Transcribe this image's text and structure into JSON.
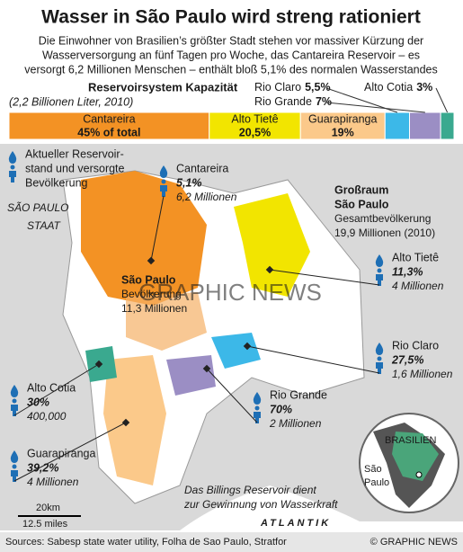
{
  "title": "Wasser in São Paulo wird streng rationiert",
  "subtitle": [
    "Die Einwohner von Brasilien’s größter Stadt stehen vor massiver Kürzung der",
    "Wasserversorgung an fünf Tagen pro Woche,  das Cantareira Reservoir – es",
    "versorgt 6,2 Millionen Menschen – enthält bloß 5,1% des normalen Wasserstandes"
  ],
  "capacity": {
    "title": "Reservoirsystem Kapazität",
    "subtitle": "(2,2 Billionen Liter, 2010)",
    "segments": [
      {
        "name": "Cantareira",
        "value": 45,
        "value_label": "45% of total",
        "color": "#f39224"
      },
      {
        "name": "Alto Tietê",
        "value": 20.5,
        "value_label": "20,5%",
        "color": "#f2e500"
      },
      {
        "name": "Guarapiranga",
        "value": 19,
        "value_label": "19%",
        "color": "#fbc98a"
      },
      {
        "name": "Rio Claro",
        "value": 5.5,
        "value_label": "5,5%",
        "color": "#3cb8e8"
      },
      {
        "name": "Rio Grande",
        "value": 7,
        "value_label": "7%",
        "color": "#9b8ec4"
      },
      {
        "name": "Alto Cotia",
        "value": 3,
        "value_label": "3%",
        "color": "#3aa98f"
      }
    ]
  },
  "legend": [
    "Aktueller Reservoir-",
    "stand und versorgte",
    "Bevölkerung"
  ],
  "state_label": [
    "SÃO PAULO",
    "STAAT"
  ],
  "metro": {
    "name": [
      "Großraum",
      "São Paulo"
    ],
    "label": "Gesamtbevölkerung",
    "population": "19,9 Millionen (2010)"
  },
  "city": {
    "name": "São Paulo",
    "label": "Bevölkerung",
    "population": "11,3 Millionen"
  },
  "reservoirs": [
    {
      "name": "Cantareira",
      "level": "5,1%",
      "population": "6,2 Millionen"
    },
    {
      "name": "Alto Tietê",
      "level": "11,3%",
      "population": "4 Millionen"
    },
    {
      "name": "Rio Claro",
      "level": "27,5%",
      "population": "1,6 Millionen"
    },
    {
      "name": "Rio Grande",
      "level": "70%",
      "population": "2 Millionen"
    },
    {
      "name": "Alto Cotia",
      "level": "30%",
      "population": "400,000"
    },
    {
      "name": "Guarapiranga",
      "level": "39,2%",
      "population": "4 Millionen"
    }
  ],
  "billings_note": [
    "Das Billings Reservoir dient",
    "zur Gewinnung von Wasserkraft"
  ],
  "ocean": "ATLANTIK",
  "watermark": "GRAPHIC NEWS",
  "scale": [
    "20km",
    "12.5 miles"
  ],
  "inset": {
    "country": "BRASILIEN",
    "city": [
      "São",
      "Paulo"
    ]
  },
  "footer": {
    "sources": "Sources: Sabesp state water utility, Folha de Sao Paulo, Stratfor",
    "credit": "© GRAPHIC NEWS"
  }
}
